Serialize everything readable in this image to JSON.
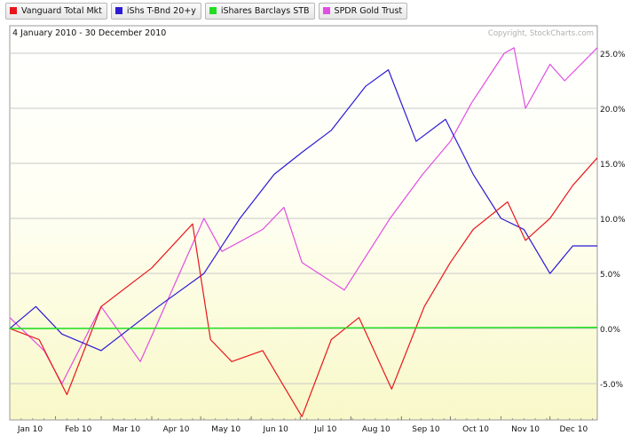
{
  "chart_data": {
    "type": "line",
    "date_range_label": "4 January 2010 - 30 December 2010",
    "copyright": "Copyright, StockCharts.com",
    "x_tick_labels": [
      "Jan 10",
      "Feb 10",
      "Mar 10",
      "Apr 10",
      "May 10",
      "Jun 10",
      "Jul 10",
      "Aug 10",
      "Sep 10",
      "Oct 10",
      "Nov 10",
      "Dec 10"
    ],
    "y_tick_labels": [
      "-5.0%",
      "0.0%",
      "5.0%",
      "10.0%",
      "15.0%",
      "20.0%",
      "25.0%"
    ],
    "y_ticks": [
      -5,
      0,
      5,
      10,
      15,
      20,
      25
    ],
    "ylim": [
      -8.3,
      27.5
    ],
    "grid": true,
    "series": [
      {
        "name": "Vanguard Total Mkt",
        "color": "#e8161b",
        "x": [
          "2010-01-04",
          "2010-01-22",
          "2010-02-08",
          "2010-03-01",
          "2010-04-01",
          "2010-04-26",
          "2010-05-07",
          "2010-05-20",
          "2010-06-08",
          "2010-06-18",
          "2010-07-02",
          "2010-07-20",
          "2010-08-06",
          "2010-08-26",
          "2010-09-15",
          "2010-10-01",
          "2010-10-15",
          "2010-11-05",
          "2010-11-16",
          "2010-12-01",
          "2010-12-15",
          "2010-12-30"
        ],
        "values": [
          0,
          -1,
          -6,
          2,
          5.5,
          9.5,
          -1,
          -3,
          -2,
          -4.5,
          -8,
          -1,
          1,
          -5.5,
          2,
          6,
          9,
          11.5,
          8,
          10,
          13,
          15.5
        ]
      },
      {
        "name": "iShs T-Bnd 20+y",
        "color": "#2b1ad6",
        "x": [
          "2010-01-04",
          "2010-01-20",
          "2010-02-05",
          "2010-03-01",
          "2010-04-05",
          "2010-05-03",
          "2010-05-25",
          "2010-06-15",
          "2010-07-02",
          "2010-07-20",
          "2010-08-10",
          "2010-08-24",
          "2010-09-10",
          "2010-09-28",
          "2010-10-15",
          "2010-11-01",
          "2010-11-15",
          "2010-12-01",
          "2010-12-15",
          "2010-12-30"
        ],
        "values": [
          0,
          2,
          -0.5,
          -2,
          2,
          5,
          10,
          14,
          16,
          18,
          22,
          23.5,
          17,
          19,
          14,
          10,
          9,
          5,
          7.5,
          7.5
        ]
      },
      {
        "name": "iShares Barclays STB",
        "color": "#22dd22",
        "x": [
          "2010-01-04",
          "2010-12-30"
        ],
        "values": [
          0,
          0.1
        ]
      },
      {
        "name": "SPDR Gold Trust",
        "color": "#e14ee1",
        "x": [
          "2010-01-04",
          "2010-01-25",
          "2010-02-05",
          "2010-03-01",
          "2010-03-25",
          "2010-04-12",
          "2010-05-03",
          "2010-05-14",
          "2010-06-08",
          "2010-06-21",
          "2010-07-02",
          "2010-07-28",
          "2010-08-25",
          "2010-09-14",
          "2010-10-01",
          "2010-10-14",
          "2010-11-03",
          "2010-11-09",
          "2010-11-16",
          "2010-12-01",
          "2010-12-10",
          "2010-12-30"
        ],
        "values": [
          1,
          -2,
          -5,
          2,
          -3,
          3,
          10,
          7,
          9,
          11,
          6,
          3.5,
          10,
          14,
          17,
          20.5,
          25,
          25.5,
          20,
          24,
          22.5,
          25.5
        ]
      }
    ]
  }
}
